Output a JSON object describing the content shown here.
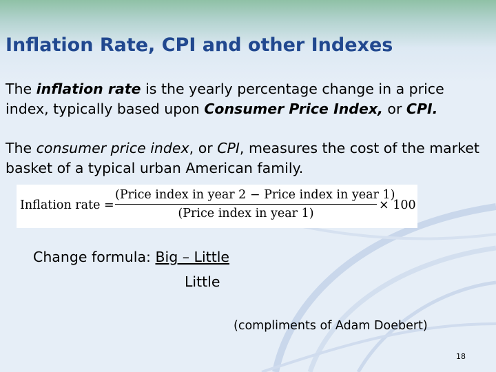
{
  "slide": {
    "title": "Inflation Rate, CPI and other Indexes",
    "para1": {
      "t1": "The ",
      "t2": "inflation rate",
      "t3": " is the yearly percentage change in a price index, typically based upon ",
      "t4": "Consumer Price Index,",
      "t5": " or ",
      "t6": "CPI."
    },
    "para2": {
      "t1": "The ",
      "t2": "consumer price index",
      "t3": ", or ",
      "t4": "CPI",
      "t5": ", measures the cost of the market basket of a typical urban American family."
    },
    "formula": {
      "label": "Inflation rate =",
      "numerator": "(Price index in year 2 − Price index in year 1)",
      "denominator": "(Price index in year 1)",
      "multiplier": "× 100"
    },
    "change_formula": {
      "label": "Change formula:  ",
      "numerator": "Big – Little",
      "denominator": "Little"
    },
    "credit": "(compliments of Adam Doebert)",
    "page_number": "18"
  },
  "colors": {
    "title": "#21488f",
    "background": "#e6eef7",
    "swirl": "#c7d6ea"
  }
}
